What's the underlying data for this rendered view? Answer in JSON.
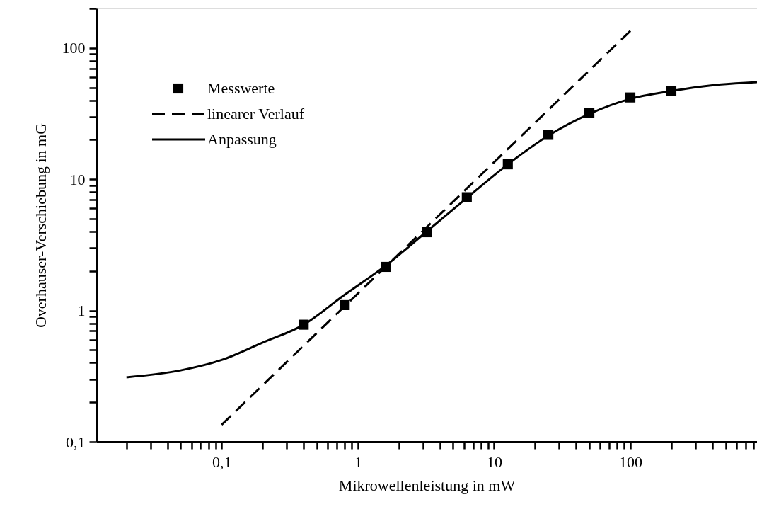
{
  "chart_data": {
    "type": "line",
    "xlabel": "Mikrowellenleistung in mW",
    "ylabel": "Overhauser-Verschiebung in mG",
    "log": "xy",
    "grid": false,
    "legend": "top left",
    "xlim": [
      0.012,
      850
    ],
    "ylim": [
      0.1,
      200
    ],
    "xticks": [
      {
        "value": 0.02,
        "label": null
      },
      {
        "value": 0.03,
        "label": null
      },
      {
        "value": 0.04,
        "label": null
      },
      {
        "value": 0.05,
        "label": null
      },
      {
        "value": 0.06,
        "label": null
      },
      {
        "value": 0.07,
        "label": null
      },
      {
        "value": 0.08,
        "label": null
      },
      {
        "value": 0.09,
        "label": null
      },
      {
        "value": 0.1,
        "label": "0,1"
      },
      {
        "value": 0.2,
        "label": null
      },
      {
        "value": 0.3,
        "label": null
      },
      {
        "value": 0.4,
        "label": null
      },
      {
        "value": 0.5,
        "label": null
      },
      {
        "value": 0.6,
        "label": null
      },
      {
        "value": 0.7,
        "label": null
      },
      {
        "value": 0.8,
        "label": null
      },
      {
        "value": 0.9,
        "label": null
      },
      1,
      {
        "value": 2,
        "label": null
      },
      {
        "value": 3,
        "label": null
      },
      {
        "value": 4,
        "label": null
      },
      {
        "value": 5,
        "label": null
      },
      {
        "value": 6,
        "label": null
      },
      {
        "value": 7,
        "label": null
      },
      {
        "value": 8,
        "label": null
      },
      {
        "value": 9,
        "label": null
      },
      10,
      {
        "value": 20,
        "label": null
      },
      {
        "value": 30,
        "label": null
      },
      {
        "value": 40,
        "label": null
      },
      {
        "value": 50,
        "label": null
      },
      {
        "value": 60,
        "label": null
      },
      {
        "value": 70,
        "label": null
      },
      {
        "value": 80,
        "label": null
      },
      {
        "value": 90,
        "label": null
      },
      100,
      {
        "value": 200,
        "label": null
      },
      {
        "value": 300,
        "label": null
      },
      {
        "value": 400,
        "label": null
      },
      {
        "value": 500,
        "label": null
      },
      {
        "value": 600,
        "label": null
      },
      {
        "value": 700,
        "label": null
      },
      {
        "value": 800,
        "label": null
      }
    ],
    "yticks": [
      {
        "value": 0.1,
        "label": "0,1"
      },
      {
        "value": 0.2,
        "label": null
      },
      {
        "value": 0.3,
        "label": null
      },
      {
        "value": 0.4,
        "label": null
      },
      {
        "value": 0.5,
        "label": null
      },
      {
        "value": 0.6,
        "label": null
      },
      {
        "value": 0.7,
        "label": null
      },
      {
        "value": 0.8,
        "label": null
      },
      {
        "value": 0.9,
        "label": null
      },
      1,
      {
        "value": 2,
        "label": null
      },
      {
        "value": 3,
        "label": null
      },
      {
        "value": 4,
        "label": null
      },
      {
        "value": 5,
        "label": null
      },
      {
        "value": 6,
        "label": null
      },
      {
        "value": 7,
        "label": null
      },
      {
        "value": 8,
        "label": null
      },
      {
        "value": 9,
        "label": null
      },
      10,
      {
        "value": 20,
        "label": null
      },
      {
        "value": 30,
        "label": null
      },
      {
        "value": 40,
        "label": null
      },
      {
        "value": 50,
        "label": null
      },
      {
        "value": 60,
        "label": null
      },
      {
        "value": 70,
        "label": null
      },
      {
        "value": 80,
        "label": null
      },
      {
        "value": 90,
        "label": null
      },
      100,
      {
        "value": 200,
        "label": null
      }
    ],
    "series": [
      {
        "name": "Messwerte",
        "type": "scatter",
        "marker": "square",
        "color": "#000000",
        "x": [
          0.4,
          0.8,
          1.6,
          3.2,
          6.3,
          12.6,
          25,
          50,
          100,
          200
        ],
        "values": [
          0.78,
          1.1,
          2.15,
          3.95,
          7.3,
          13,
          21.8,
          32,
          42,
          47
        ]
      },
      {
        "name": "linearer Verlauf",
        "line_style": "dashed",
        "color": "#000000",
        "x": [
          0.1,
          100
        ],
        "values": [
          0.135,
          135
        ]
      },
      {
        "name": "Anpassung",
        "line_style": "solid",
        "color": "#000000",
        "x": [
          0.02,
          0.05,
          0.1,
          0.2,
          0.4,
          0.8,
          1.6,
          3.2,
          6.3,
          12.6,
          25,
          50,
          100,
          200,
          400,
          850
        ],
        "values": [
          0.31,
          0.35,
          0.42,
          0.57,
          0.78,
          1.32,
          2.2,
          4.0,
          7.2,
          13,
          21.5,
          31.5,
          41,
          47,
          52,
          55
        ]
      }
    ]
  }
}
